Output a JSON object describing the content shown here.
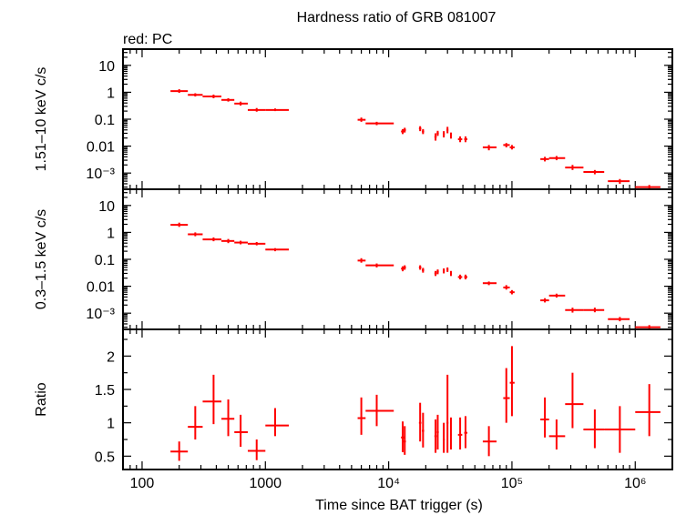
{
  "title": "Hardness ratio of GRB 081007",
  "subtitle": "red: PC",
  "xlabel": "Time since BAT trigger (s)",
  "colors": {
    "data": "#ff0000",
    "axes": "#000000"
  },
  "chart_data": [
    {
      "type": "scatter",
      "panel": "hard",
      "ylabel": "1.51–10 keV c/s",
      "xscale": "log",
      "yscale": "log",
      "xlim": [
        70,
        2000000
      ],
      "ylim": [
        0.00025,
        40
      ],
      "xticks": [
        "100",
        "1000",
        "10⁴",
        "10⁵",
        "10⁶"
      ],
      "yticks": [
        "10",
        "1",
        "0.1",
        "0.01",
        "10⁻³"
      ],
      "grid": false,
      "series": [
        {
          "points": [
            {
              "x": 200,
              "y": 1.1,
              "xlo": 170,
              "xhi": 235,
              "ylo": 0.95,
              "yhi": 1.3
            },
            {
              "x": 270,
              "y": 0.8,
              "xlo": 235,
              "xhi": 310,
              "ylo": 0.7,
              "yhi": 0.92
            },
            {
              "x": 380,
              "y": 0.7,
              "xlo": 310,
              "xhi": 440,
              "ylo": 0.6,
              "yhi": 0.82
            },
            {
              "x": 500,
              "y": 0.52,
              "xlo": 440,
              "xhi": 560,
              "ylo": 0.45,
              "yhi": 0.6
            },
            {
              "x": 630,
              "y": 0.38,
              "xlo": 560,
              "xhi": 720,
              "ylo": 0.32,
              "yhi": 0.45
            },
            {
              "x": 850,
              "y": 0.22,
              "xlo": 720,
              "xhi": 1000,
              "ylo": 0.19,
              "yhi": 0.26
            },
            {
              "x": 1200,
              "y": 0.22,
              "xlo": 1000,
              "xhi": 1550,
              "ylo": 0.2,
              "yhi": 0.25
            },
            {
              "x": 6000,
              "y": 0.095,
              "xlo": 5600,
              "xhi": 6500,
              "ylo": 0.08,
              "yhi": 0.115
            },
            {
              "x": 8000,
              "y": 0.07,
              "xlo": 6500,
              "xhi": 11000,
              "ylo": 0.06,
              "yhi": 0.08
            },
            {
              "x": 13000,
              "y": 0.035,
              "xlo": 12600,
              "xhi": 13400,
              "ylo": 0.028,
              "yhi": 0.043
            },
            {
              "x": 13500,
              "y": 0.04,
              "xlo": 13200,
              "xhi": 13800,
              "ylo": 0.032,
              "yhi": 0.048
            },
            {
              "x": 18000,
              "y": 0.045,
              "xlo": 17600,
              "xhi": 18400,
              "ylo": 0.036,
              "yhi": 0.055
            },
            {
              "x": 19000,
              "y": 0.035,
              "xlo": 18600,
              "xhi": 19400,
              "ylo": 0.028,
              "yhi": 0.043
            },
            {
              "x": 24000,
              "y": 0.022,
              "xlo": 23500,
              "xhi": 24500,
              "ylo": 0.016,
              "yhi": 0.03
            },
            {
              "x": 25000,
              "y": 0.03,
              "xlo": 24500,
              "xhi": 25500,
              "ylo": 0.024,
              "yhi": 0.037
            },
            {
              "x": 28000,
              "y": 0.028,
              "xlo": 27500,
              "xhi": 28500,
              "ylo": 0.021,
              "yhi": 0.036
            },
            {
              "x": 30000,
              "y": 0.04,
              "xlo": 29500,
              "xhi": 30500,
              "ylo": 0.03,
              "yhi": 0.052
            },
            {
              "x": 32000,
              "y": 0.025,
              "xlo": 31500,
              "xhi": 32500,
              "ylo": 0.019,
              "yhi": 0.032
            },
            {
              "x": 38000,
              "y": 0.018,
              "xlo": 36500,
              "xhi": 39500,
              "ylo": 0.014,
              "yhi": 0.023
            },
            {
              "x": 42000,
              "y": 0.018,
              "xlo": 41000,
              "xhi": 43500,
              "ylo": 0.014,
              "yhi": 0.023
            },
            {
              "x": 65000,
              "y": 0.009,
              "xlo": 58000,
              "xhi": 75000,
              "ylo": 0.007,
              "yhi": 0.011
            },
            {
              "x": 90000,
              "y": 0.011,
              "xlo": 85000,
              "xhi": 96000,
              "ylo": 0.009,
              "yhi": 0.013
            },
            {
              "x": 100000,
              "y": 0.009,
              "xlo": 96000,
              "xhi": 105000,
              "ylo": 0.0075,
              "yhi": 0.011
            },
            {
              "x": 185000,
              "y": 0.0033,
              "xlo": 170000,
              "xhi": 200000,
              "ylo": 0.0027,
              "yhi": 0.004
            },
            {
              "x": 230000,
              "y": 0.0036,
              "xlo": 200000,
              "xhi": 270000,
              "ylo": 0.003,
              "yhi": 0.0043
            },
            {
              "x": 310000,
              "y": 0.0016,
              "xlo": 270000,
              "xhi": 380000,
              "ylo": 0.0013,
              "yhi": 0.002
            },
            {
              "x": 470000,
              "y": 0.0011,
              "xlo": 380000,
              "xhi": 560000,
              "ylo": 0.0009,
              "yhi": 0.0013
            },
            {
              "x": 750000,
              "y": 0.0005,
              "xlo": 600000,
              "xhi": 900000,
              "ylo": 0.0004,
              "yhi": 0.0006
            },
            {
              "x": 1300000,
              "y": 0.0003,
              "xlo": 1000000,
              "xhi": 1600000,
              "ylo": 0.00025,
              "yhi": 0.00036
            }
          ]
        }
      ]
    },
    {
      "type": "scatter",
      "panel": "soft",
      "ylabel": "0.3–1.5 keV c/s",
      "xscale": "log",
      "yscale": "log",
      "xlim": [
        70,
        2000000
      ],
      "ylim": [
        0.00025,
        40
      ],
      "yticks": [
        "10",
        "1",
        "0.1",
        "0.01",
        "10⁻³"
      ],
      "grid": false,
      "series": [
        {
          "points": [
            {
              "x": 200,
              "y": 1.9,
              "xlo": 170,
              "xhi": 235,
              "ylo": 1.6,
              "yhi": 2.3
            },
            {
              "x": 270,
              "y": 0.85,
              "xlo": 235,
              "xhi": 310,
              "ylo": 0.72,
              "yhi": 1.0
            },
            {
              "x": 380,
              "y": 0.55,
              "xlo": 310,
              "xhi": 440,
              "ylo": 0.47,
              "yhi": 0.65
            },
            {
              "x": 500,
              "y": 0.48,
              "xlo": 440,
              "xhi": 560,
              "ylo": 0.4,
              "yhi": 0.57
            },
            {
              "x": 630,
              "y": 0.42,
              "xlo": 560,
              "xhi": 720,
              "ylo": 0.36,
              "yhi": 0.49
            },
            {
              "x": 850,
              "y": 0.38,
              "xlo": 720,
              "xhi": 1000,
              "ylo": 0.33,
              "yhi": 0.44
            },
            {
              "x": 1200,
              "y": 0.23,
              "xlo": 1000,
              "xhi": 1550,
              "ylo": 0.2,
              "yhi": 0.26
            },
            {
              "x": 6000,
              "y": 0.09,
              "xlo": 5600,
              "xhi": 6500,
              "ylo": 0.075,
              "yhi": 0.11
            },
            {
              "x": 8000,
              "y": 0.06,
              "xlo": 6500,
              "xhi": 11000,
              "ylo": 0.05,
              "yhi": 0.07
            },
            {
              "x": 13000,
              "y": 0.045,
              "xlo": 12600,
              "xhi": 13400,
              "ylo": 0.036,
              "yhi": 0.055
            },
            {
              "x": 13500,
              "y": 0.05,
              "xlo": 13200,
              "xhi": 13800,
              "ylo": 0.041,
              "yhi": 0.06
            },
            {
              "x": 18000,
              "y": 0.05,
              "xlo": 17600,
              "xhi": 18400,
              "ylo": 0.041,
              "yhi": 0.06
            },
            {
              "x": 19000,
              "y": 0.04,
              "xlo": 18600,
              "xhi": 19400,
              "ylo": 0.032,
              "yhi": 0.048
            },
            {
              "x": 24000,
              "y": 0.03,
              "xlo": 23500,
              "xhi": 24500,
              "ylo": 0.024,
              "yhi": 0.037
            },
            {
              "x": 25000,
              "y": 0.035,
              "xlo": 24500,
              "xhi": 25500,
              "ylo": 0.028,
              "yhi": 0.042
            },
            {
              "x": 28000,
              "y": 0.038,
              "xlo": 27500,
              "xhi": 28500,
              "ylo": 0.03,
              "yhi": 0.046
            },
            {
              "x": 30000,
              "y": 0.042,
              "xlo": 29500,
              "xhi": 30500,
              "ylo": 0.034,
              "yhi": 0.05
            },
            {
              "x": 32000,
              "y": 0.03,
              "xlo": 31500,
              "xhi": 32500,
              "ylo": 0.024,
              "yhi": 0.037
            },
            {
              "x": 38000,
              "y": 0.022,
              "xlo": 36500,
              "xhi": 39500,
              "ylo": 0.018,
              "yhi": 0.027
            },
            {
              "x": 42000,
              "y": 0.022,
              "xlo": 41000,
              "xhi": 43500,
              "ylo": 0.018,
              "yhi": 0.027
            },
            {
              "x": 65000,
              "y": 0.013,
              "xlo": 58000,
              "xhi": 75000,
              "ylo": 0.011,
              "yhi": 0.015
            },
            {
              "x": 90000,
              "y": 0.009,
              "xlo": 85000,
              "xhi": 96000,
              "ylo": 0.0075,
              "yhi": 0.011
            },
            {
              "x": 100000,
              "y": 0.006,
              "xlo": 96000,
              "xhi": 105000,
              "ylo": 0.005,
              "yhi": 0.0072
            },
            {
              "x": 185000,
              "y": 0.003,
              "xlo": 170000,
              "xhi": 200000,
              "ylo": 0.0025,
              "yhi": 0.0036
            },
            {
              "x": 230000,
              "y": 0.0045,
              "xlo": 200000,
              "xhi": 270000,
              "ylo": 0.0038,
              "yhi": 0.0053
            },
            {
              "x": 310000,
              "y": 0.0013,
              "xlo": 270000,
              "xhi": 380000,
              "ylo": 0.00105,
              "yhi": 0.0016
            },
            {
              "x": 470000,
              "y": 0.0013,
              "xlo": 380000,
              "xhi": 560000,
              "ylo": 0.00108,
              "yhi": 0.0016
            },
            {
              "x": 750000,
              "y": 0.0006,
              "xlo": 600000,
              "xhi": 900000,
              "ylo": 0.0005,
              "yhi": 0.00072
            },
            {
              "x": 1300000,
              "y": 0.0003,
              "xlo": 1000000,
              "xhi": 1600000,
              "ylo": 0.00025,
              "yhi": 0.00036
            }
          ]
        }
      ]
    },
    {
      "type": "scatter",
      "panel": "ratio",
      "ylabel": "Ratio",
      "xscale": "log",
      "yscale": "linear",
      "xlim": [
        70,
        2000000
      ],
      "ylim": [
        0.3,
        2.4
      ],
      "yticks": [
        "0.5",
        "1",
        "1.5",
        "2"
      ],
      "grid": false,
      "series": [
        {
          "points": [
            {
              "x": 200,
              "y": 0.57,
              "xlo": 170,
              "xhi": 235,
              "ylo": 0.43,
              "yhi": 0.72
            },
            {
              "x": 270,
              "y": 0.94,
              "xlo": 235,
              "xhi": 310,
              "ylo": 0.75,
              "yhi": 1.25
            },
            {
              "x": 380,
              "y": 1.32,
              "xlo": 310,
              "xhi": 440,
              "ylo": 0.98,
              "yhi": 1.72
            },
            {
              "x": 500,
              "y": 1.06,
              "xlo": 440,
              "xhi": 560,
              "ylo": 0.8,
              "yhi": 1.35
            },
            {
              "x": 630,
              "y": 0.86,
              "xlo": 560,
              "xhi": 720,
              "ylo": 0.64,
              "yhi": 1.12
            },
            {
              "x": 850,
              "y": 0.58,
              "xlo": 720,
              "xhi": 1000,
              "ylo": 0.44,
              "yhi": 0.75
            },
            {
              "x": 1200,
              "y": 0.96,
              "xlo": 1000,
              "xhi": 1550,
              "ylo": 0.8,
              "yhi": 1.22
            },
            {
              "x": 6000,
              "y": 1.07,
              "xlo": 5600,
              "xhi": 6500,
              "ylo": 0.82,
              "yhi": 1.38
            },
            {
              "x": 8000,
              "y": 1.18,
              "xlo": 6500,
              "xhi": 11000,
              "ylo": 0.95,
              "yhi": 1.42
            },
            {
              "x": 13000,
              "y": 0.78,
              "xlo": 12600,
              "xhi": 13400,
              "ylo": 0.56,
              "yhi": 1.02
            },
            {
              "x": 13500,
              "y": 0.72,
              "xlo": 13200,
              "xhi": 13800,
              "ylo": 0.52,
              "yhi": 0.95
            },
            {
              "x": 18000,
              "y": 1.0,
              "xlo": 17600,
              "xhi": 18400,
              "ylo": 0.72,
              "yhi": 1.3
            },
            {
              "x": 19000,
              "y": 0.88,
              "xlo": 18600,
              "xhi": 19400,
              "ylo": 0.63,
              "yhi": 1.15
            },
            {
              "x": 24000,
              "y": 0.8,
              "xlo": 23500,
              "xhi": 24500,
              "ylo": 0.55,
              "yhi": 1.05
            },
            {
              "x": 25000,
              "y": 0.86,
              "xlo": 24500,
              "xhi": 25500,
              "ylo": 0.6,
              "yhi": 1.12
            },
            {
              "x": 28000,
              "y": 0.75,
              "xlo": 27500,
              "xhi": 28500,
              "ylo": 0.55,
              "yhi": 1.0
            },
            {
              "x": 30000,
              "y": 1.0,
              "xlo": 29500,
              "xhi": 30500,
              "ylo": 0.55,
              "yhi": 1.72
            },
            {
              "x": 32000,
              "y": 0.82,
              "xlo": 31500,
              "xhi": 32500,
              "ylo": 0.6,
              "yhi": 1.08
            },
            {
              "x": 38000,
              "y": 0.82,
              "xlo": 36500,
              "xhi": 39500,
              "ylo": 0.6,
              "yhi": 1.08
            },
            {
              "x": 42000,
              "y": 0.85,
              "xlo": 41000,
              "xhi": 43500,
              "ylo": 0.62,
              "yhi": 1.1
            },
            {
              "x": 65000,
              "y": 0.72,
              "xlo": 58000,
              "xhi": 75000,
              "ylo": 0.5,
              "yhi": 0.95
            },
            {
              "x": 90000,
              "y": 1.37,
              "xlo": 85000,
              "xhi": 96000,
              "ylo": 1.0,
              "yhi": 1.82
            },
            {
              "x": 100000,
              "y": 1.6,
              "xlo": 96000,
              "xhi": 105000,
              "ylo": 1.1,
              "yhi": 2.15
            },
            {
              "x": 185000,
              "y": 1.05,
              "xlo": 170000,
              "xhi": 200000,
              "ylo": 0.78,
              "yhi": 1.38
            },
            {
              "x": 230000,
              "y": 0.8,
              "xlo": 200000,
              "xhi": 270000,
              "ylo": 0.6,
              "yhi": 1.05
            },
            {
              "x": 310000,
              "y": 1.28,
              "xlo": 270000,
              "xhi": 380000,
              "ylo": 0.92,
              "yhi": 1.75
            },
            {
              "x": 470000,
              "y": 0.9,
              "xlo": 380000,
              "xhi": 560000,
              "ylo": 0.62,
              "yhi": 1.2
            },
            {
              "x": 750000,
              "y": 0.9,
              "xlo": 560000,
              "xhi": 1000000,
              "ylo": 0.55,
              "yhi": 1.25
            },
            {
              "x": 1300000,
              "y": 1.16,
              "xlo": 1000000,
              "xhi": 1600000,
              "ylo": 0.8,
              "yhi": 1.58
            }
          ]
        }
      ]
    }
  ]
}
